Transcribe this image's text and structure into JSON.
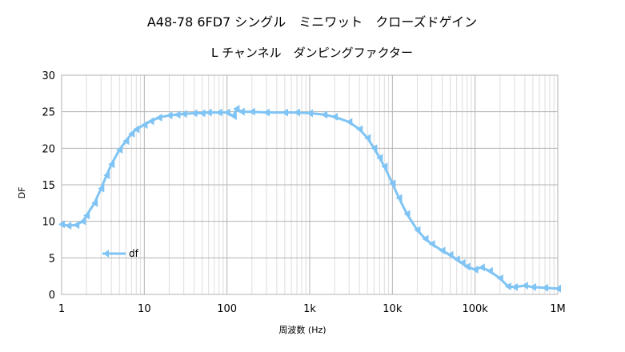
{
  "chart_data": {
    "type": "line",
    "title": "A48-78 6FD7 シングル　ミニワット　クローズドゲイン",
    "subtitle": "L チャンネル　ダンピングファクター",
    "xlabel": "周波数 (Hz)",
    "ylabel": "DF",
    "xscale": "log",
    "xlim": [
      1,
      1000000
    ],
    "ylim": [
      0,
      30
    ],
    "x_ticks": [
      1,
      10,
      100,
      1000,
      10000,
      100000,
      1000000
    ],
    "x_tick_labels": [
      "1",
      "10",
      "100",
      "1k",
      "10k",
      "100k",
      "1M"
    ],
    "y_ticks": [
      0,
      5,
      10,
      15,
      20,
      25,
      30
    ],
    "y_tick_labels": [
      "0",
      "5",
      "10",
      "15",
      "20",
      "25",
      "30"
    ],
    "grid": true,
    "legend": "left-inside",
    "series": [
      {
        "name": "df",
        "color": "#7fc4f4",
        "marker": "arrow-left",
        "x": [
          1,
          1.2,
          1.5,
          1.8,
          2,
          2.5,
          3,
          3.5,
          4,
          5,
          6,
          7,
          8,
          10,
          12,
          15,
          20,
          25,
          30,
          40,
          50,
          60,
          80,
          100,
          120,
          130,
          150,
          200,
          300,
          500,
          700,
          1000,
          1500,
          2000,
          3000,
          4000,
          5000,
          6000,
          7000,
          8000,
          10000,
          12000,
          15000,
          20000,
          25000,
          30000,
          40000,
          50000,
          60000,
          70000,
          80000,
          100000,
          120000,
          150000,
          200000,
          250000,
          300000,
          400000,
          500000,
          700000,
          1000000
        ],
        "y": [
          9.6,
          9.4,
          9.5,
          10.0,
          10.8,
          12.5,
          14.5,
          16.3,
          17.8,
          19.8,
          21.0,
          22.0,
          22.6,
          23.2,
          23.7,
          24.2,
          24.5,
          24.6,
          24.7,
          24.8,
          24.8,
          24.9,
          24.9,
          24.9,
          24.4,
          25.4,
          25.0,
          25.0,
          24.9,
          24.9,
          24.9,
          24.8,
          24.6,
          24.3,
          23.6,
          22.6,
          21.4,
          20.0,
          18.7,
          17.5,
          15.2,
          13.2,
          11.0,
          8.8,
          7.6,
          6.9,
          6.0,
          5.4,
          4.8,
          4.3,
          3.8,
          3.4,
          3.7,
          3.2,
          2.2,
          1.1,
          1.0,
          1.2,
          1.0,
          0.9,
          0.8
        ]
      }
    ]
  }
}
